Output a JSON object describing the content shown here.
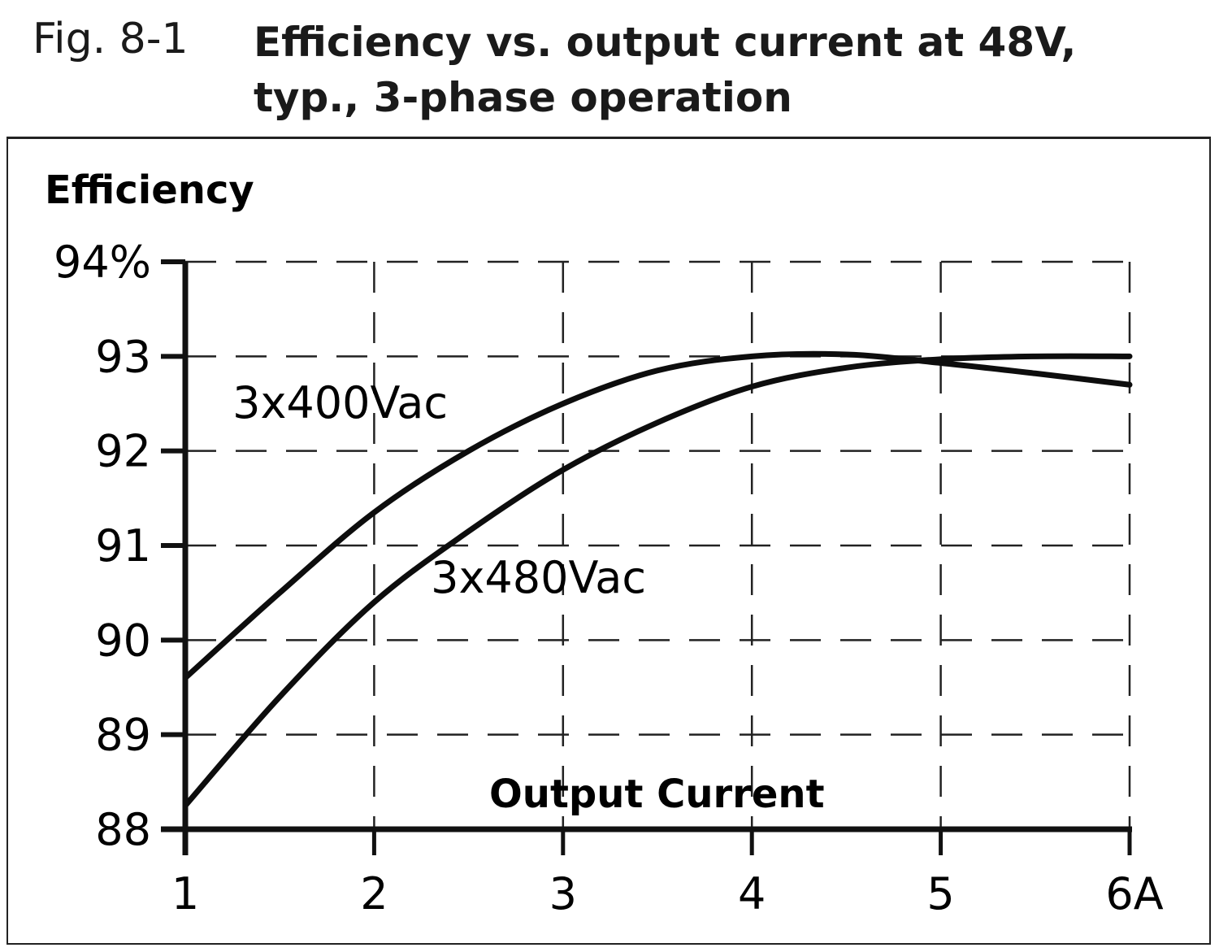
{
  "figure": {
    "number": "Fig. 8-1",
    "title_line1": "Efficiency vs. output current at 48V,",
    "title_line2": "typ., 3-phase operation"
  },
  "chart_data": {
    "type": "line",
    "title": "Efficiency vs. output current at 48V, typ., 3-phase operation",
    "xlabel": "Output Current",
    "ylabel": "Efficiency",
    "xlim": [
      1,
      6
    ],
    "ylim": [
      88,
      94
    ],
    "x_unit": "A",
    "y_unit": "%",
    "grid": true,
    "grid_style": "dashed",
    "x_ticks": [
      "1",
      "2",
      "3",
      "4",
      "5",
      "6A"
    ],
    "y_ticks": [
      "88",
      "89",
      "90",
      "91",
      "92",
      "93",
      "94%"
    ],
    "x": [
      1,
      1.5,
      2,
      2.5,
      3,
      3.5,
      4,
      4.5,
      5,
      5.5,
      6
    ],
    "series": [
      {
        "name": "3x400Vac",
        "values": [
          89.6,
          90.5,
          91.35,
          92.0,
          92.5,
          92.85,
          93.0,
          93.02,
          92.93,
          92.82,
          92.7
        ]
      },
      {
        "name": "3x480Vac",
        "values": [
          88.25,
          89.4,
          90.4,
          91.15,
          91.8,
          92.3,
          92.68,
          92.88,
          92.97,
          93.0,
          93.0
        ]
      }
    ],
    "annotations": [
      {
        "text": "3x400Vac",
        "x": 1.25,
        "y": 92.35
      },
      {
        "text": "3x480Vac",
        "x": 2.3,
        "y": 90.5
      }
    ]
  }
}
